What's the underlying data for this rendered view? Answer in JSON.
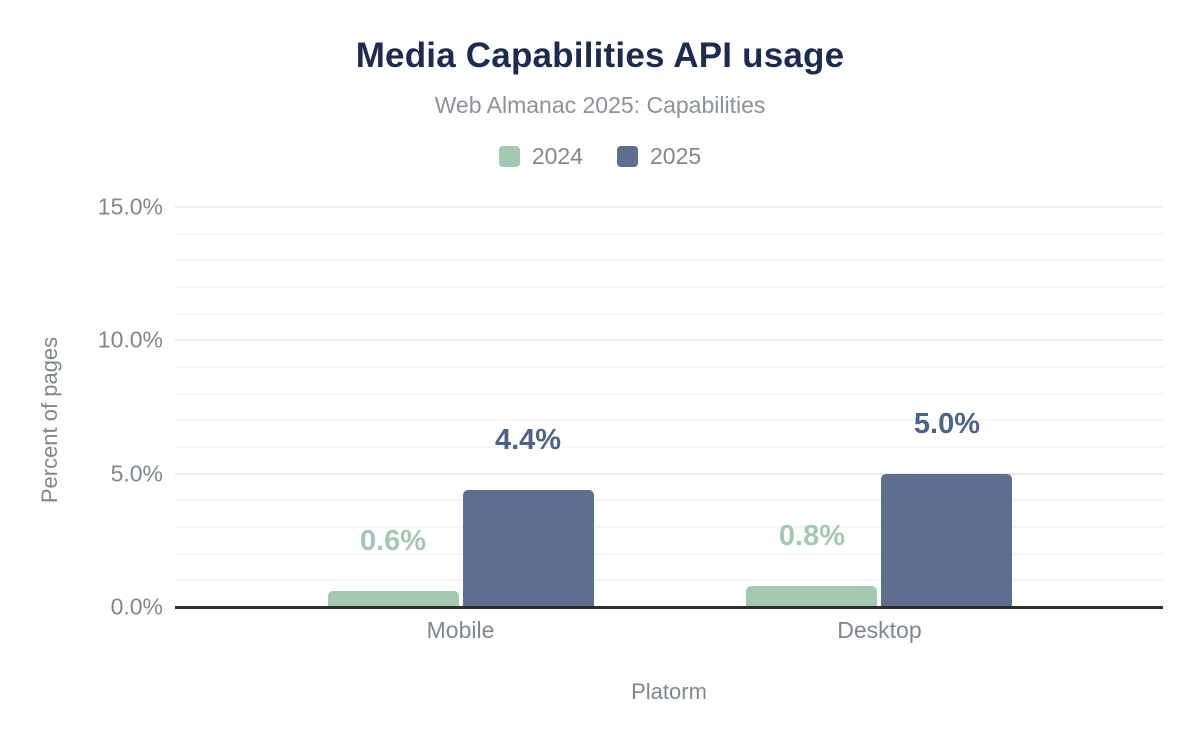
{
  "header": {
    "title": "Media Capabilities API usage",
    "subtitle": "Web Almanac 2025: Capabilities"
  },
  "colors": {
    "title": "#1c2b4f",
    "subtitle": "#8b9299",
    "axis_text": "#7f878e",
    "axis_line": "#2e2e2e",
    "grid_minor": "#f5f5f5",
    "grid_major": "#ececec",
    "series_2024": "#a3c9b2",
    "series_2025": "#5e6e8e",
    "label_2024": "#a3c9b2",
    "label_2025": "#4d6388"
  },
  "chart_data": {
    "type": "bar",
    "title": "Media Capabilities API usage",
    "subtitle": "Web Almanac 2025: Capabilities",
    "categories": [
      "Mobile",
      "Desktop"
    ],
    "series": [
      {
        "name": "2024",
        "color": "#a3c9b2",
        "label_color": "#a3c9b2",
        "values": [
          0.6,
          0.8
        ],
        "labels": [
          "0.6%",
          "0.8%"
        ]
      },
      {
        "name": "2025",
        "color": "#5e6e8e",
        "label_color": "#4d6388",
        "values": [
          4.4,
          5.0
        ],
        "labels": [
          "4.4%",
          "5.0%"
        ]
      }
    ],
    "xlabel": "Platorm",
    "ylabel": "Percent of pages",
    "ylim": [
      0,
      15
    ],
    "ytick_values": [
      0,
      5,
      10,
      15
    ],
    "ytick_labels": [
      "0.0%",
      "5.0%",
      "10.0%",
      "15.0%"
    ],
    "minor_grid_step": 1,
    "grid": true,
    "legend_position": "top"
  }
}
